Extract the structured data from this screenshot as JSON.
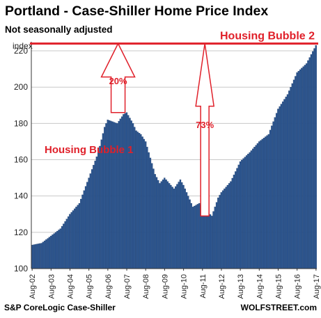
{
  "title": "Portland - Case-Shiller Home Price Index",
  "subtitle": "Not seasonally adjusted",
  "source": "S&P CoreLogic Case-Shiller",
  "brand": "WOLFSTREET.com",
  "colors": {
    "bar": "#2c5691",
    "bar_edge": "#1b3a66",
    "annotation": "#e0202a",
    "grid": "#c8c8c8"
  },
  "chart_data": {
    "type": "bar",
    "ylabel": "index",
    "ylim": [
      100,
      225
    ],
    "yticks": [
      100,
      120,
      140,
      160,
      180,
      200,
      220
    ],
    "grid": "horizontal",
    "x_tick_labels": [
      "Aug-02",
      "Aug-03",
      "Aug-04",
      "Aug-05",
      "Aug-06",
      "Aug-07",
      "Aug-08",
      "Aug-09",
      "Aug-10",
      "Aug-11",
      "Aug-12",
      "Aug-13",
      "Aug-14",
      "Aug-15",
      "Aug-16",
      "Aug-17"
    ],
    "anchors": [
      [
        "2002-08",
        113
      ],
      [
        "2003-02",
        114
      ],
      [
        "2003-08",
        118
      ],
      [
        "2004-02",
        122
      ],
      [
        "2004-08",
        130
      ],
      [
        "2005-02",
        136
      ],
      [
        "2005-08",
        150
      ],
      [
        "2006-02",
        164
      ],
      [
        "2006-04",
        171
      ],
      [
        "2006-06",
        178
      ],
      [
        "2006-08",
        182
      ],
      [
        "2007-02",
        180
      ],
      [
        "2007-06",
        185
      ],
      [
        "2007-08",
        186
      ],
      [
        "2007-12",
        180
      ],
      [
        "2008-02",
        176
      ],
      [
        "2008-05",
        174
      ],
      [
        "2008-08",
        170
      ],
      [
        "2009-02",
        152
      ],
      [
        "2009-05",
        147
      ],
      [
        "2009-08",
        150
      ],
      [
        "2009-12",
        146
      ],
      [
        "2010-02",
        144
      ],
      [
        "2010-06",
        149
      ],
      [
        "2010-08",
        146
      ],
      [
        "2011-02",
        134
      ],
      [
        "2011-06",
        136
      ],
      [
        "2011-08",
        134
      ],
      [
        "2012-02",
        129
      ],
      [
        "2012-06",
        139
      ],
      [
        "2012-08",
        142
      ],
      [
        "2013-02",
        148
      ],
      [
        "2013-08",
        159
      ],
      [
        "2014-02",
        164
      ],
      [
        "2014-08",
        170
      ],
      [
        "2015-02",
        174
      ],
      [
        "2015-08",
        188
      ],
      [
        "2016-02",
        196
      ],
      [
        "2016-08",
        208
      ],
      [
        "2017-02",
        213
      ],
      [
        "2017-08",
        223
      ]
    ],
    "series": [
      {
        "values_note": ""
      }
    ],
    "reference_line": {
      "y": 224,
      "label": "Housing Bubble 2"
    },
    "annotations": [
      {
        "label": "Housing Bubble 1"
      },
      {
        "label": "20%",
        "arrow": "up",
        "x": "2007-03",
        "from": 186,
        "to": 224
      },
      {
        "label": "73%",
        "arrow": "up",
        "x": "2011-10",
        "from": 129,
        "to": 224
      }
    ]
  }
}
